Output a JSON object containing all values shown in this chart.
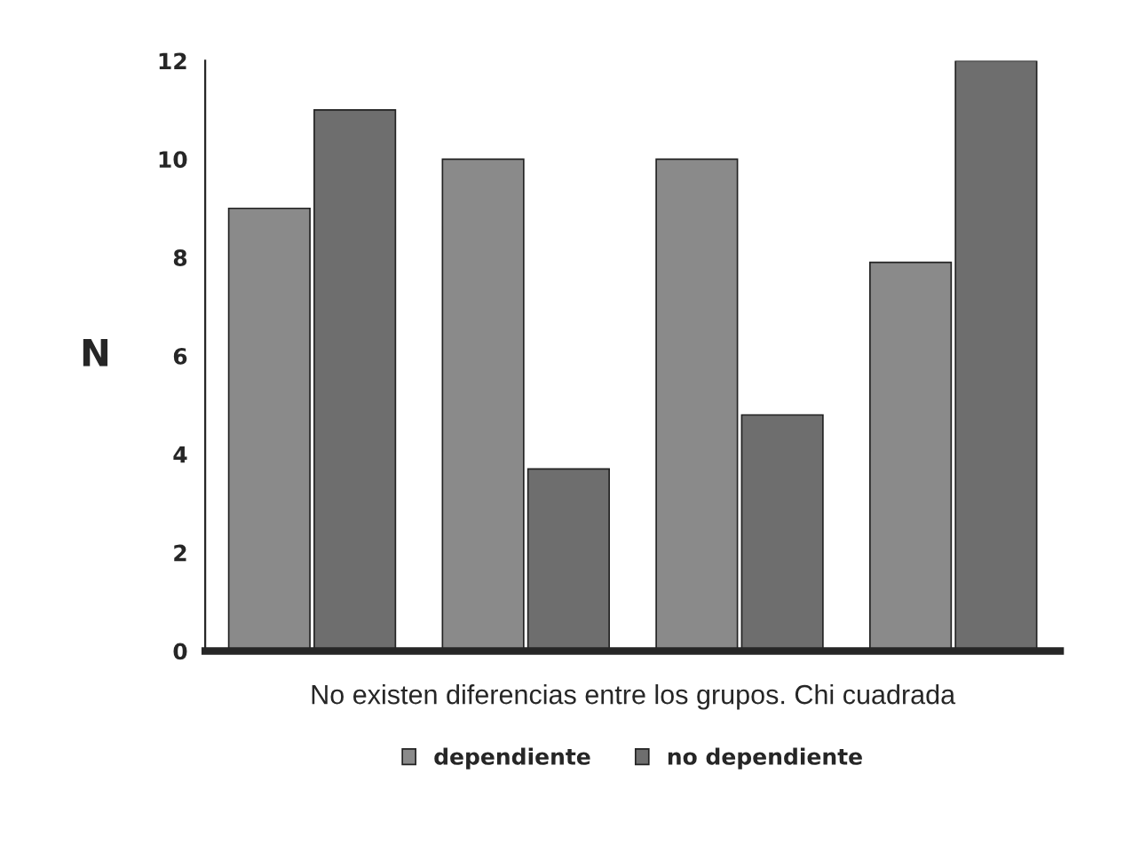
{
  "chart_data": {
    "type": "bar",
    "categories": [
      null,
      null,
      null,
      null
    ],
    "xlabel": "No existen diferencias entre los grupos. Chi cuadrada",
    "ylabel": "N",
    "series": [
      {
        "name": "dependiente",
        "color": "#8a8a8a",
        "values": [
          9,
          10,
          10,
          7.9
        ]
      },
      {
        "name": "no dependiente",
        "color": "#6e6e6e",
        "values": [
          11,
          3.7,
          4.8,
          12
        ]
      }
    ],
    "ylim": [
      0,
      12
    ],
    "yticks": [
      0,
      2,
      4,
      6,
      8,
      10,
      12
    ],
    "grid": false,
    "legend": "bottom"
  }
}
